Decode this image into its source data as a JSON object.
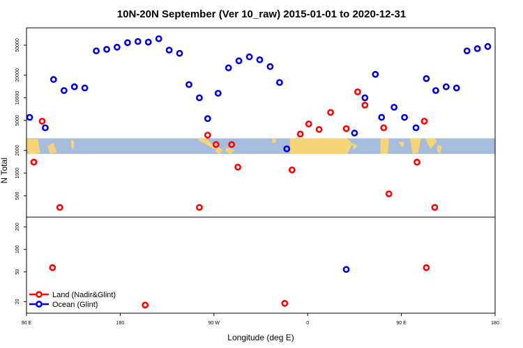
{
  "chart_data": {
    "type": "scatter",
    "title": "10N-20N September (Ver 10_raw)   2015-01-01 to 2020-12-31",
    "xlabel": "Longitude (deg E)",
    "ylabel": "N Total",
    "x_ticks": [
      {
        "value": 90,
        "label": "90 E"
      },
      {
        "value": 180,
        "label": "180"
      },
      {
        "value": 270,
        "label": "90 W"
      },
      {
        "value": 360,
        "label": "0"
      },
      {
        "value": 450,
        "label": "90 E"
      },
      {
        "value": 540,
        "label": "180"
      }
    ],
    "xlim": [
      90,
      540
    ],
    "y_scale": "log",
    "upper_panel": {
      "ylim": [
        260,
        85000
      ],
      "ticks": [
        {
          "value": 500,
          "label": "500"
        },
        {
          "value": 1000,
          "label": "1000"
        },
        {
          "value": 2000,
          "label": "2000"
        },
        {
          "value": 5000,
          "label": "5000"
        },
        {
          "value": 10000,
          "label": "10000"
        },
        {
          "value": 20000,
          "label": "20000"
        },
        {
          "value": 50000,
          "label": "50000"
        }
      ],
      "map_band": {
        "y_from": 1800,
        "y_to": 2900
      }
    },
    "lower_panel": {
      "ylim": [
        14,
        270
      ],
      "ticks": [
        {
          "value": 20,
          "label": "20"
        },
        {
          "value": 50,
          "label": "50"
        },
        {
          "value": 100,
          "label": "100"
        },
        {
          "value": 200,
          "label": "200"
        }
      ]
    },
    "series": [
      {
        "name": "Land (Nadir&Glint)",
        "color": "#ff0000",
        "points": [
          {
            "x": 97,
            "y": 1400
          },
          {
            "x": 105,
            "y": 4900
          },
          {
            "x": 115,
            "y": 57
          },
          {
            "x": 122,
            "y": 350
          },
          {
            "x": 204,
            "y": 18
          },
          {
            "x": 256,
            "y": 350
          },
          {
            "x": 264,
            "y": 3200
          },
          {
            "x": 272,
            "y": 2400
          },
          {
            "x": 287,
            "y": 2400
          },
          {
            "x": 293,
            "y": 1200
          },
          {
            "x": 338,
            "y": 19
          },
          {
            "x": 345,
            "y": 1100
          },
          {
            "x": 353,
            "y": 3300
          },
          {
            "x": 361,
            "y": 4500
          },
          {
            "x": 371,
            "y": 3800
          },
          {
            "x": 382,
            "y": 6400
          },
          {
            "x": 397,
            "y": 3900
          },
          {
            "x": 408,
            "y": 12000
          },
          {
            "x": 415,
            "y": 8000
          },
          {
            "x": 433,
            "y": 4000
          },
          {
            "x": 438,
            "y": 530
          },
          {
            "x": 465,
            "y": 1400
          },
          {
            "x": 472,
            "y": 4900
          },
          {
            "x": 474,
            "y": 57
          },
          {
            "x": 482,
            "y": 350
          }
        ]
      },
      {
        "name": "Ocean (Glint)",
        "color": "#0000dd",
        "points": [
          {
            "x": 93,
            "y": 5500
          },
          {
            "x": 108,
            "y": 4000
          },
          {
            "x": 116,
            "y": 17500
          },
          {
            "x": 126,
            "y": 12500
          },
          {
            "x": 136,
            "y": 14000
          },
          {
            "x": 146,
            "y": 13500
          },
          {
            "x": 157,
            "y": 42000
          },
          {
            "x": 167,
            "y": 44000
          },
          {
            "x": 177,
            "y": 47000
          },
          {
            "x": 187,
            "y": 54000
          },
          {
            "x": 197,
            "y": 56000
          },
          {
            "x": 207,
            "y": 55000
          },
          {
            "x": 217,
            "y": 61000
          },
          {
            "x": 227,
            "y": 43000
          },
          {
            "x": 237,
            "y": 39000
          },
          {
            "x": 246,
            "y": 15000
          },
          {
            "x": 256,
            "y": 10000
          },
          {
            "x": 264,
            "y": 5300
          },
          {
            "x": 274,
            "y": 11500
          },
          {
            "x": 284,
            "y": 25000
          },
          {
            "x": 294,
            "y": 31000
          },
          {
            "x": 304,
            "y": 35000
          },
          {
            "x": 314,
            "y": 32000
          },
          {
            "x": 324,
            "y": 26000
          },
          {
            "x": 333,
            "y": 16000
          },
          {
            "x": 340,
            "y": 2100
          },
          {
            "x": 397,
            "y": 54
          },
          {
            "x": 405,
            "y": 3400
          },
          {
            "x": 415,
            "y": 10000
          },
          {
            "x": 425,
            "y": 20500
          },
          {
            "x": 431,
            "y": 5500
          },
          {
            "x": 443,
            "y": 7500
          },
          {
            "x": 453,
            "y": 5500
          },
          {
            "x": 464,
            "y": 4000
          },
          {
            "x": 474,
            "y": 18000
          },
          {
            "x": 483,
            "y": 12500
          },
          {
            "x": 493,
            "y": 14000
          },
          {
            "x": 503,
            "y": 13500
          },
          {
            "x": 513,
            "y": 42000
          },
          {
            "x": 523,
            "y": 45000
          },
          {
            "x": 533,
            "y": 48000
          }
        ]
      }
    ],
    "legend": {
      "placement": "bottom-left",
      "entries": [
        {
          "label": "Land (Nadir&Glint)",
          "color": "#ff0000"
        },
        {
          "label": "Ocean (Glint)",
          "color": "#0000dd"
        }
      ]
    },
    "colors": {
      "ocean_band": "#a5bcdc",
      "land_band": "#f8d478",
      "frame": "#000000"
    }
  }
}
